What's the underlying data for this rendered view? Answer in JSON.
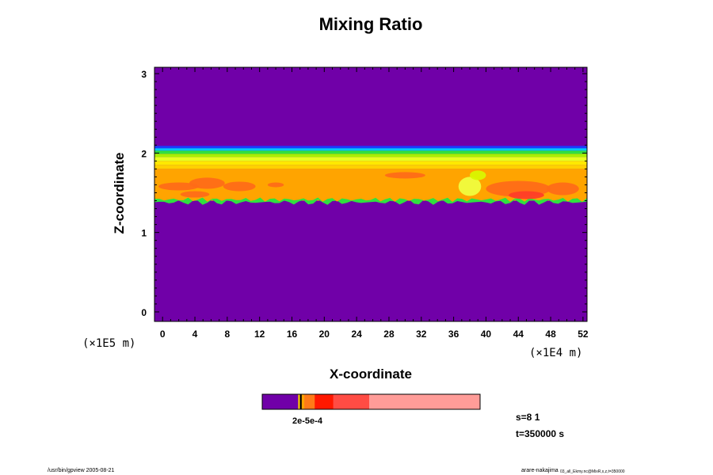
{
  "chart_data": {
    "type": "heatmap",
    "title": "Mixing Ratio",
    "xlabel": "X-coordinate",
    "ylabel": "Z-coordinate",
    "x_multiplier": "(×1E4 m)",
    "y_multiplier": "(×1E5 m)",
    "xlim": [
      -1,
      52.5
    ],
    "ylim": [
      -0.12,
      3.08
    ],
    "x_ticks": [
      "0",
      "4",
      "8",
      "12",
      "16",
      "20",
      "24",
      "28",
      "32",
      "36",
      "40",
      "44",
      "48",
      "52"
    ],
    "y_ticks": [
      "0",
      "1",
      "2",
      "3"
    ],
    "field_colors": {
      "background": "#7000a8",
      "blue": "#1a3cff",
      "cyan": "#00c8ff",
      "green": "#30e040",
      "yellow": "#d8f800",
      "yellow_light": "#f0ff40",
      "gold": "#ffd000",
      "orange": "#ffa400",
      "orange_red": "#ff6a18",
      "red": "#ff3c28"
    },
    "bands": [
      {
        "z0": 2.06,
        "z1": 2.09,
        "color": "#1a3cff"
      },
      {
        "z0": 2.03,
        "z1": 2.06,
        "color": "#00c8ff"
      },
      {
        "z0": 1.99,
        "z1": 2.03,
        "color": "#30e040"
      },
      {
        "z0": 1.95,
        "z1": 1.99,
        "color": "#a8f000"
      },
      {
        "z0": 1.9,
        "z1": 1.95,
        "color": "#e8ff20"
      },
      {
        "z0": 1.85,
        "z1": 1.9,
        "color": "#ffe800"
      },
      {
        "z0": 1.8,
        "z1": 1.85,
        "color": "#ffd000"
      },
      {
        "z0": 1.4,
        "z1": 1.8,
        "color": "#ffa400"
      }
    ],
    "lower_edge_z": 1.38,
    "patches": [
      {
        "x": 2,
        "z": 1.58,
        "rx": 2.5,
        "rz": 0.05,
        "color": "#ff6a18"
      },
      {
        "x": 5.5,
        "z": 1.62,
        "rx": 2.2,
        "rz": 0.07,
        "color": "#ff6a18"
      },
      {
        "x": 9.5,
        "z": 1.58,
        "rx": 2.0,
        "rz": 0.06,
        "color": "#ff6a18"
      },
      {
        "x": 4,
        "z": 1.48,
        "rx": 1.8,
        "rz": 0.04,
        "color": "#ff6a18"
      },
      {
        "x": 30,
        "z": 1.72,
        "rx": 2.5,
        "rz": 0.04,
        "color": "#ff6a18"
      },
      {
        "x": 14,
        "z": 1.6,
        "rx": 1.0,
        "rz": 0.03,
        "color": "#ff6a18"
      },
      {
        "x": 44,
        "z": 1.55,
        "rx": 4.0,
        "rz": 0.1,
        "color": "#ff6a18"
      },
      {
        "x": 45,
        "z": 1.47,
        "rx": 2.2,
        "rz": 0.05,
        "color": "#ff3c28"
      },
      {
        "x": 49.5,
        "z": 1.55,
        "rx": 2.0,
        "rz": 0.08,
        "color": "#ff6a18"
      },
      {
        "x": 38,
        "z": 1.58,
        "rx": 1.4,
        "rz": 0.12,
        "color": "#f0ff40"
      },
      {
        "x": 39,
        "z": 1.72,
        "rx": 1.0,
        "rz": 0.06,
        "color": "#d8f800"
      }
    ],
    "colorbar": {
      "segments": [
        {
          "frac": 0.165,
          "color": "#7000a8"
        },
        {
          "frac": 0.008,
          "color": "#ffd000"
        },
        {
          "frac": 0.008,
          "color": "#000000"
        },
        {
          "frac": 0.012,
          "color": "#ffa400"
        },
        {
          "frac": 0.048,
          "color": "#ff7a18"
        },
        {
          "frac": 0.085,
          "color": "#ff1800"
        },
        {
          "frac": 0.165,
          "color": "#ff4c44"
        },
        {
          "frac": 0.509,
          "color": "#ff9c98"
        }
      ],
      "label": "2e-5e-4"
    }
  },
  "info": {
    "slice": "s=8 1",
    "time": "t=350000 s"
  },
  "footer": {
    "left": "/usr/bin/gpview 2005-08-21",
    "right_main": "arare-nakajima",
    "right_small": "03_all_Ekmy.nc@MixR,x,z,t=350000"
  }
}
